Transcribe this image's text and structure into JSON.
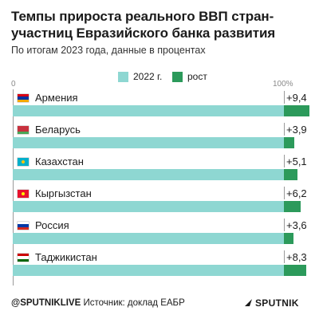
{
  "header": {
    "title": "Темпы прироста реального ВВП стран-участниц Евразийского банка развития",
    "subtitle": "По итогам 2023 года, данные в процентах"
  },
  "legend": {
    "base_label": "2022 г.",
    "growth_label": "рост"
  },
  "colors": {
    "base": "#8ed7d2",
    "growth": "#2c9a5b"
  },
  "chart_data": {
    "type": "bar",
    "title": "Темпы прироста реального ВВП стран-участниц Евразийского банка развития",
    "subtitle": "По итогам 2023 года, данные в процентах",
    "axis": {
      "min_label": "0",
      "max_label": "100%",
      "xlim": [
        0,
        100
      ]
    },
    "legend_position": "top-center",
    "categories": [
      "Армения",
      "Беларусь",
      "Казахстан",
      "Кыргызстан",
      "Россия",
      "Таджикистан"
    ],
    "series": [
      {
        "name": "2022 г.",
        "values": [
          100,
          100,
          100,
          100,
          100,
          100
        ]
      },
      {
        "name": "рост",
        "values": [
          9.4,
          3.9,
          5.1,
          6.2,
          3.6,
          8.3
        ]
      }
    ],
    "value_labels": [
      "+9,4",
      "+3,9",
      "+5,1",
      "+6,2",
      "+3,6",
      "+8,3"
    ],
    "flags": [
      "armenia-flag",
      "belarus-flag",
      "kazakhstan-flag",
      "kyrgyzstan-flag",
      "russia-flag",
      "tajikistan-flag"
    ]
  },
  "footer": {
    "handle": "@SPUTNIKLIVE",
    "source": "Источник: доклад ЕАБР",
    "brand": "SPUTNIK"
  }
}
